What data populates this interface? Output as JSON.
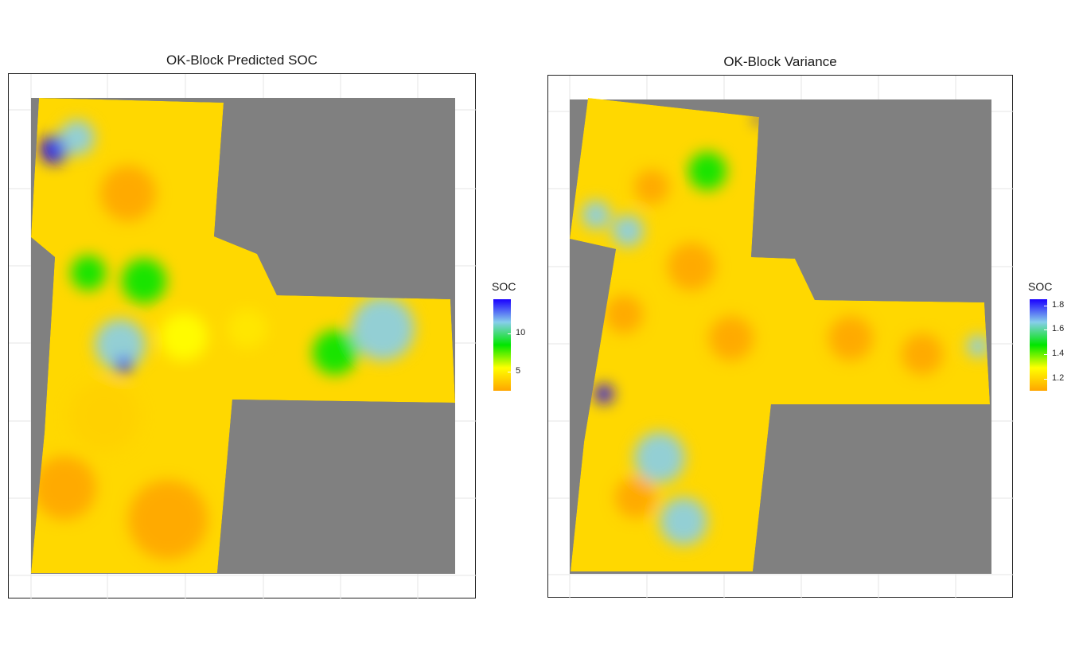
{
  "chart_data": [
    {
      "type": "heatmap",
      "title": "OK-Block Predicted SOC",
      "legend": {
        "title": "SOC",
        "ticks": [
          5,
          10
        ],
        "tick_labels": [
          "5",
          "10"
        ],
        "range": [
          2.5,
          14.5
        ],
        "colors": [
          "#ffa500",
          "#ffff00",
          "#00e600",
          "#87ceeb",
          "#1a00ff"
        ]
      },
      "grid": true,
      "background_color": "#808080"
    },
    {
      "type": "heatmap",
      "title": "OK-Block Variance",
      "legend": {
        "title": "SOC",
        "ticks": [
          1.2,
          1.4,
          1.6,
          1.8
        ],
        "tick_labels": [
          "1.2",
          "1.4",
          "1.6",
          "1.8"
        ],
        "range": [
          1.1,
          1.85
        ],
        "colors": [
          "#ffa500",
          "#ffff00",
          "#00e600",
          "#87ceeb",
          "#1a00ff"
        ]
      },
      "grid": true,
      "background_color": "#808080"
    }
  ]
}
